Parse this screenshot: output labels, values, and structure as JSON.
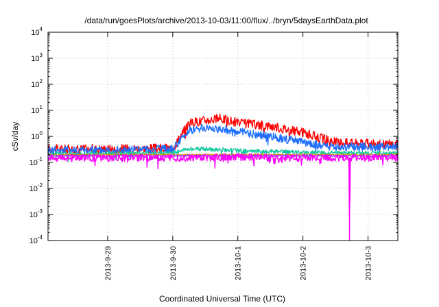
{
  "chart_data": {
    "type": "line",
    "title": "/data/run/goesPlots/archive/2013-10-03/11:00/flux/../bryn/5daysEarthData.plot",
    "xlabel": "Coordinated Universal Time (UTC)",
    "ylabel": "cSv/day",
    "y_scale": "log",
    "ylim": [
      0.0001,
      10000
    ],
    "y_ticks": [
      {
        "base": "10",
        "exp": "-4",
        "value": 0.0001
      },
      {
        "base": "10",
        "exp": "-3",
        "value": 0.001
      },
      {
        "base": "10",
        "exp": "-2",
        "value": 0.01
      },
      {
        "base": "10",
        "exp": "-1",
        "value": 0.1
      },
      {
        "base": "10",
        "exp": "0",
        "value": 1
      },
      {
        "base": "10",
        "exp": "1",
        "value": 10
      },
      {
        "base": "10",
        "exp": "2",
        "value": 100
      },
      {
        "base": "10",
        "exp": "3",
        "value": 1000
      },
      {
        "base": "10",
        "exp": "4",
        "value": 10000
      }
    ],
    "xlim": [
      "2013-09-28 02:00",
      "2013-10-03 11:00"
    ],
    "x_ticks": [
      "2013-9-29",
      "2013-9-30",
      "2013-10-1",
      "2013-10-2",
      "2013-10-3"
    ],
    "grid": true,
    "series": [
      {
        "color": "#ff0000",
        "x": [
          "2013-09-28 02:00",
          "2013-09-29 00:00",
          "2013-09-30 00:00",
          "2013-09-30 06:00",
          "2013-09-30 12:00",
          "2013-09-30 18:00",
          "2013-10-01 00:00",
          "2013-10-01 12:00",
          "2013-10-02 00:00",
          "2013-10-02 06:00",
          "2013-10-02 12:00",
          "2013-10-03 00:00",
          "2013-10-03 11:00"
        ],
        "values": [
          0.32,
          0.33,
          0.35,
          3.2,
          4.2,
          4.8,
          3.3,
          2.5,
          1.4,
          0.9,
          0.6,
          0.52,
          0.5
        ]
      },
      {
        "color": "#1e6fff",
        "x": [
          "2013-09-28 02:00",
          "2013-09-29 00:00",
          "2013-09-30 00:00",
          "2013-09-30 06:00",
          "2013-09-30 12:00",
          "2013-09-30 18:00",
          "2013-10-01 00:00",
          "2013-10-01 12:00",
          "2013-10-02 00:00",
          "2013-10-02 06:00",
          "2013-10-02 12:00",
          "2013-10-03 00:00",
          "2013-10-03 11:00"
        ],
        "values": [
          0.3,
          0.3,
          0.32,
          1.7,
          2.1,
          2.0,
          1.5,
          1.0,
          0.6,
          0.45,
          0.4,
          0.4,
          0.4
        ]
      },
      {
        "color": "#14c8a0",
        "x": [
          "2013-09-28 02:00",
          "2013-09-29 00:00",
          "2013-09-30 00:00",
          "2013-09-30 06:00",
          "2013-09-30 12:00",
          "2013-09-30 18:00",
          "2013-10-01 00:00",
          "2013-10-01 12:00",
          "2013-10-02 00:00",
          "2013-10-02 12:00",
          "2013-10-03 11:00"
        ],
        "values": [
          0.22,
          0.22,
          0.23,
          0.34,
          0.33,
          0.31,
          0.28,
          0.26,
          0.24,
          0.23,
          0.23
        ]
      },
      {
        "color": "#d2a000",
        "x": [
          "2013-09-28 02:00",
          "2013-10-03 11:00"
        ],
        "values": [
          0.2,
          0.2
        ]
      },
      {
        "color": "#9b1fff",
        "x": [
          "2013-09-28 02:00",
          "2013-10-03 11:00"
        ],
        "values": [
          0.18,
          0.18
        ]
      },
      {
        "color": "#ff00ff",
        "x": [
          "2013-09-28 02:00",
          "2013-09-29 00:00",
          "2013-09-30 00:00",
          "2013-10-01 00:00",
          "2013-10-02 00:00",
          "2013-10-02 17:00",
          "2013-10-02 17:10",
          "2013-10-02 17:30",
          "2013-10-03 11:00"
        ],
        "values": [
          0.15,
          0.15,
          0.15,
          0.16,
          0.15,
          0.15,
          0.0001,
          0.15,
          0.15
        ]
      }
    ]
  }
}
